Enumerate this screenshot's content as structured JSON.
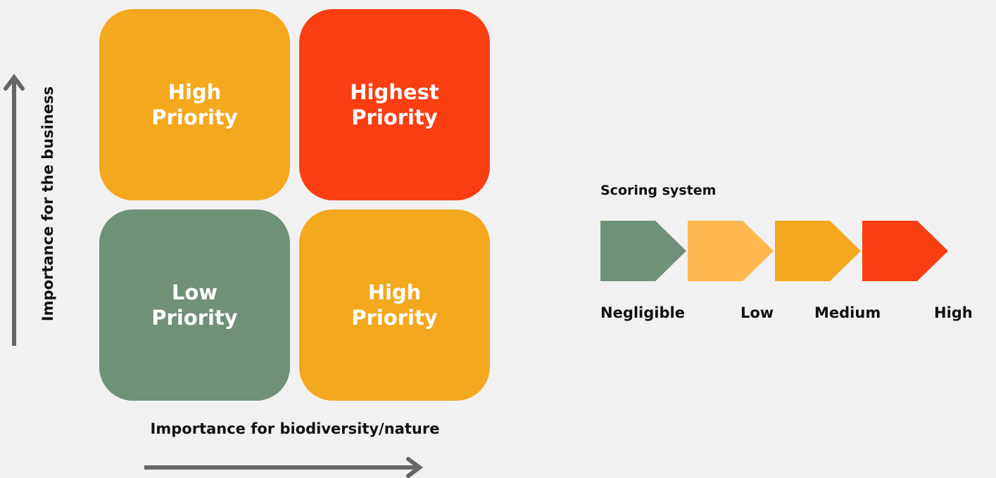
{
  "matrix": {
    "y_axis_label": "Importance for the business",
    "x_axis_label": "Importance for biodiversity/nature",
    "quadrants": [
      {
        "lines": [
          "High",
          "Priority"
        ],
        "color": "#f4a81e"
      },
      {
        "lines": [
          "Highest",
          "Priority"
        ],
        "color": "#f93e12"
      },
      {
        "lines": [
          "Low",
          "Priority"
        ],
        "color": "#6e9178"
      },
      {
        "lines": [
          "High",
          "Priority"
        ],
        "color": "#f4a81e"
      }
    ]
  },
  "scoring": {
    "title": "Scoring system",
    "levels": [
      {
        "label": "Negligible",
        "color": "#6e9178"
      },
      {
        "label": "Low",
        "color": "#ffb950"
      },
      {
        "label": "Medium",
        "color": "#f4a81e"
      },
      {
        "label": "High",
        "color": "#f93e12"
      }
    ]
  }
}
